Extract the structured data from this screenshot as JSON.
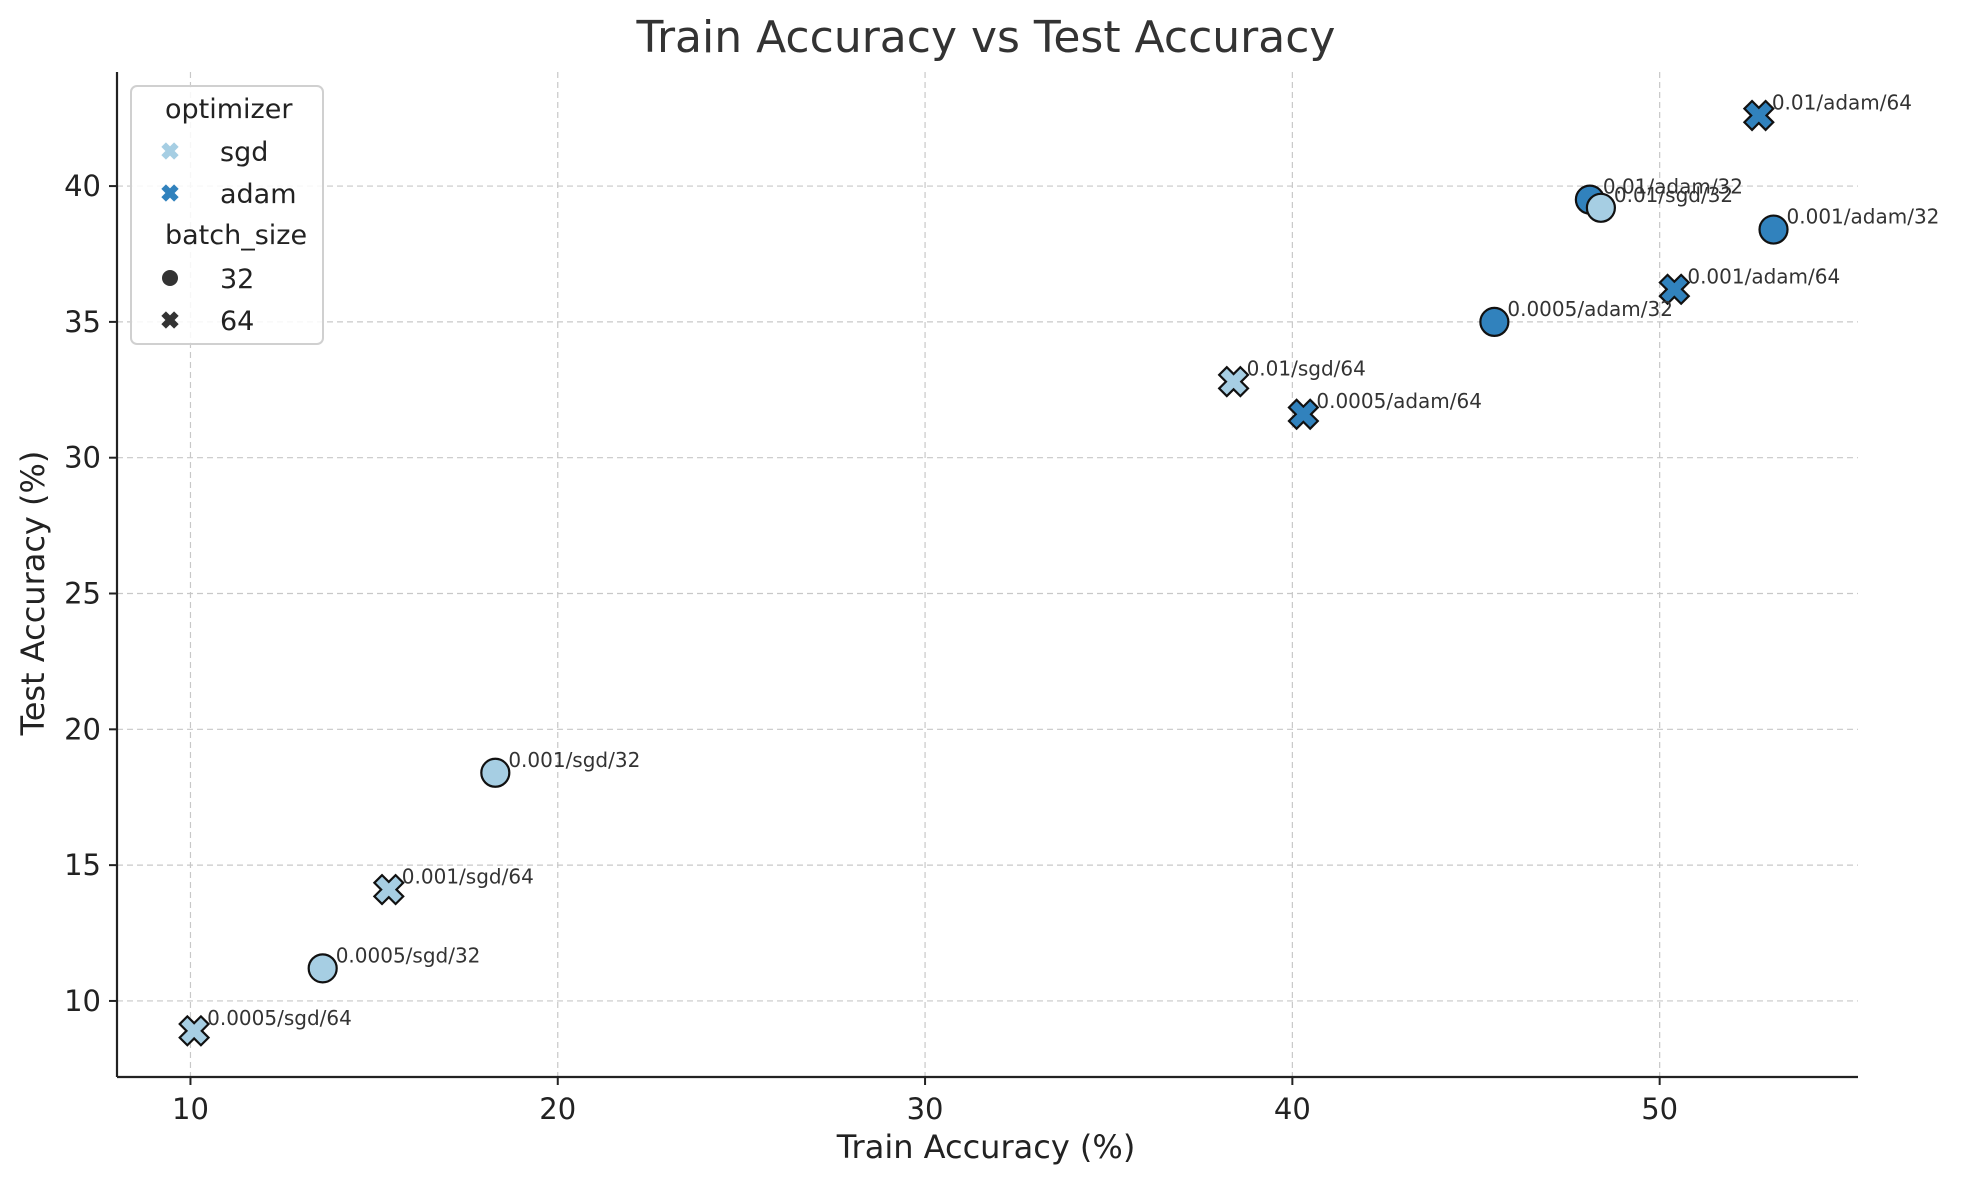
{
  "chart_data": {
    "type": "scatter",
    "title": "Train Accuracy vs Test Accuracy",
    "xlabel": "Train Accuracy (%)",
    "ylabel": "Test Accuracy (%)",
    "xlim": [
      8,
      55.4
    ],
    "ylim": [
      7.2,
      44.2
    ],
    "xticks": [
      10,
      20,
      30,
      40,
      50
    ],
    "yticks": [
      10,
      15,
      20,
      25,
      30,
      35,
      40
    ],
    "grid": true,
    "legend_position": "top-left",
    "colors": {
      "sgd": "#a6cee3",
      "adam": "#3182bd"
    },
    "legend": {
      "optimizer_title": "optimizer",
      "optimizer_items": [
        {
          "label": "sgd",
          "key": "sgd"
        },
        {
          "label": "adam",
          "key": "adam"
        }
      ],
      "batch_title": "batch_size",
      "batch_items": [
        {
          "label": "32",
          "marker": "circle"
        },
        {
          "label": "64",
          "marker": "x"
        }
      ]
    },
    "points": [
      {
        "label": "0.01/adam/64",
        "optimizer": "adam",
        "batch_size": 64,
        "x": 52.7,
        "y": 42.6
      },
      {
        "label": "0.01/adam/32",
        "optimizer": "adam",
        "batch_size": 32,
        "x": 48.1,
        "y": 39.5
      },
      {
        "label": "0.01/sgd/32",
        "optimizer": "sgd",
        "batch_size": 32,
        "x": 48.4,
        "y": 39.2
      },
      {
        "label": "0.001/adam/32",
        "optimizer": "adam",
        "batch_size": 32,
        "x": 53.1,
        "y": 38.4
      },
      {
        "label": "0.001/adam/64",
        "optimizer": "adam",
        "batch_size": 64,
        "x": 50.4,
        "y": 36.2
      },
      {
        "label": "0.0005/adam/32",
        "optimizer": "adam",
        "batch_size": 32,
        "x": 45.5,
        "y": 35.0
      },
      {
        "label": "0.01/sgd/64",
        "optimizer": "sgd",
        "batch_size": 64,
        "x": 38.4,
        "y": 32.8
      },
      {
        "label": "0.0005/adam/64",
        "optimizer": "adam",
        "batch_size": 64,
        "x": 40.3,
        "y": 31.6
      },
      {
        "label": "0.001/sgd/32",
        "optimizer": "sgd",
        "batch_size": 32,
        "x": 18.3,
        "y": 18.4
      },
      {
        "label": "0.001/sgd/64",
        "optimizer": "sgd",
        "batch_size": 64,
        "x": 15.4,
        "y": 14.1
      },
      {
        "label": "0.0005/sgd/32",
        "optimizer": "sgd",
        "batch_size": 32,
        "x": 13.6,
        "y": 11.2
      },
      {
        "label": "0.0005/sgd/64",
        "optimizer": "sgd",
        "batch_size": 64,
        "x": 10.1,
        "y": 8.9
      }
    ]
  }
}
